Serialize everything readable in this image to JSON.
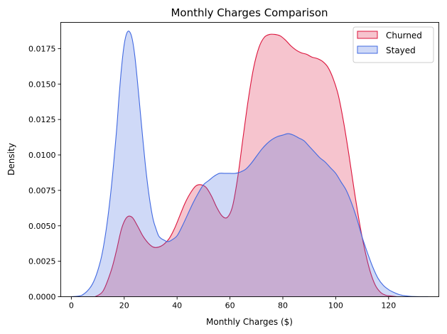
{
  "chart_data": {
    "type": "area",
    "title": "Monthly Charges Comparison",
    "xlabel": "Monthly Charges ($)",
    "ylabel": "Density",
    "xlim": [
      -4,
      139
    ],
    "ylim": [
      0,
      0.01935
    ],
    "x_ticks": [
      0,
      20,
      40,
      60,
      80,
      100,
      120
    ],
    "x_tick_labels": [
      "0",
      "20",
      "40",
      "60",
      "80",
      "100",
      "120"
    ],
    "y_ticks": [
      0,
      0.0025,
      0.005,
      0.0075,
      0.01,
      0.0125,
      0.015,
      0.0175
    ],
    "y_tick_labels": [
      "0.0000",
      "0.0025",
      "0.0050",
      "0.0075",
      "0.0100",
      "0.0125",
      "0.0150",
      "0.0175"
    ],
    "grid": false,
    "legend_position": "top-right",
    "series": [
      {
        "name": "Churned",
        "color": "#dc143c",
        "fill_opacity": 0.25,
        "x": [
          9,
          12,
          15,
          17,
          19,
          21,
          23,
          25,
          27,
          29,
          31,
          33,
          35,
          37,
          39,
          41,
          43,
          45,
          47,
          49,
          51,
          53,
          55,
          57,
          59,
          61,
          63,
          65,
          67,
          69,
          71,
          73,
          75,
          77,
          79,
          81,
          83,
          85,
          87,
          89,
          91,
          93,
          95,
          97,
          99,
          101,
          103,
          105,
          107,
          109,
          111,
          113,
          115,
          117,
          119,
          121,
          123
        ],
        "y": [
          0.0,
          0.0004,
          0.0018,
          0.0032,
          0.0048,
          0.0056,
          0.0056,
          0.005,
          0.0043,
          0.0038,
          0.0035,
          0.0035,
          0.0037,
          0.0041,
          0.0048,
          0.0057,
          0.0066,
          0.0073,
          0.0078,
          0.0079,
          0.0077,
          0.0071,
          0.0063,
          0.0057,
          0.0056,
          0.0064,
          0.0085,
          0.0113,
          0.014,
          0.0162,
          0.0176,
          0.0183,
          0.0185,
          0.0185,
          0.0184,
          0.0181,
          0.0177,
          0.0174,
          0.0172,
          0.0171,
          0.0169,
          0.0168,
          0.0166,
          0.0162,
          0.0154,
          0.0142,
          0.0123,
          0.01,
          0.0075,
          0.0052,
          0.0033,
          0.0018,
          0.0008,
          0.0003,
          0.0001,
          5e-05,
          0.0
        ]
      },
      {
        "name": "Stayed",
        "color": "#4169e1",
        "fill_opacity": 0.25,
        "x": [
          0,
          4,
          8,
          11,
          13,
          15,
          17,
          18,
          19,
          20,
          21,
          22,
          23,
          24,
          25,
          26,
          27,
          28,
          29,
          30,
          31,
          32,
          33,
          34,
          35,
          36,
          37,
          38,
          40,
          42,
          44,
          46,
          48,
          50,
          52,
          54,
          56,
          58,
          60,
          62,
          64,
          66,
          68,
          70,
          72,
          74,
          76,
          78,
          80,
          82,
          84,
          86,
          88,
          90,
          92,
          94,
          96,
          98,
          100,
          102,
          104,
          106,
          108,
          110,
          112,
          114,
          116,
          118,
          120,
          122,
          124,
          126,
          128,
          130,
          132,
          135
        ],
        "y": [
          0.0,
          0.0001,
          0.0009,
          0.0025,
          0.0045,
          0.0075,
          0.0115,
          0.014,
          0.0162,
          0.0178,
          0.0186,
          0.0187,
          0.0182,
          0.017,
          0.0152,
          0.0132,
          0.0112,
          0.0093,
          0.0077,
          0.0064,
          0.0054,
          0.0048,
          0.0043,
          0.0041,
          0.004,
          0.0039,
          0.0039,
          0.004,
          0.0043,
          0.005,
          0.0058,
          0.0066,
          0.0073,
          0.0079,
          0.0082,
          0.0085,
          0.0087,
          0.0087,
          0.0087,
          0.0087,
          0.0088,
          0.009,
          0.0094,
          0.0099,
          0.0104,
          0.0108,
          0.0111,
          0.0113,
          0.0114,
          0.0115,
          0.0114,
          0.0112,
          0.011,
          0.0106,
          0.0102,
          0.0098,
          0.0095,
          0.0091,
          0.0087,
          0.0081,
          0.0075,
          0.0066,
          0.0055,
          0.0042,
          0.0031,
          0.0021,
          0.0013,
          0.0008,
          0.0005,
          0.0003,
          0.00015,
          7e-05,
          3e-05,
          1e-05,
          0.0,
          0.0
        ]
      }
    ]
  }
}
